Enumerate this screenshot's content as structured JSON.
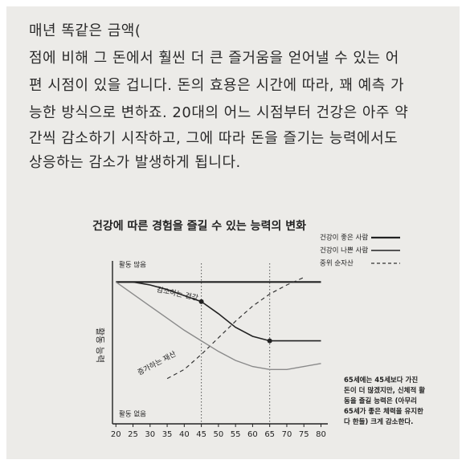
{
  "text_lines": [
    "매년 똑같은 금액(",
    "점에 비해 그 돈에서 훨씬 더 큰 즐거움을 얻어낼 수 있는 어",
    "편 시점이 있을 겁니다. 돈의 효용은 시간에 따라, 꽤 예측 가",
    "능한 방식으로 변하죠. 20대의 어느 시점부터 건강은 아주 약",
    "간씩 감소하기 시작하고, 그에 따라 돈을 즐기는 능력에서도",
    "상응하는 감소가 발생하게 됩니다."
  ],
  "chart_data": {
    "type": "line",
    "title": "건강에 따른 경험을 즐길 수 있는 능력의 변화",
    "y_label": "활동 능력",
    "x": [
      20,
      25,
      30,
      35,
      40,
      45,
      50,
      55,
      60,
      65,
      70,
      75,
      80
    ],
    "xlim": [
      19,
      82
    ],
    "xticks": [
      20,
      25,
      30,
      35,
      40,
      45,
      50,
      55,
      60,
      65,
      70,
      75,
      80
    ],
    "ylim": [
      0,
      100
    ],
    "yticks": [
      {
        "value": 100,
        "label": "활동 많음"
      },
      {
        "value": 0,
        "label": "활동 없음"
      }
    ],
    "reference_lines_x": [
      45,
      65
    ],
    "series": [
      {
        "name": "건강이 좋은 사람",
        "color": "#222222",
        "width": 2.2,
        "dash": false,
        "values": [
          94,
          94,
          94,
          94,
          94,
          94,
          94,
          94,
          94,
          94,
          94,
          94,
          94
        ]
      },
      {
        "name": "건강이 나쁜 사람",
        "color": "#222222",
        "width": 1.6,
        "dash": false,
        "marker_indices": [
          5,
          9
        ],
        "values": [
          94,
          94,
          92,
          89,
          85,
          81,
          73,
          64,
          58,
          55,
          55,
          55,
          55
        ]
      },
      {
        "name": "중위 순자산",
        "color": "#333333",
        "width": 1.2,
        "dash": true,
        "values": [
          null,
          null,
          null,
          30,
          36,
          46,
          57,
          68,
          78,
          86,
          92,
          97,
          null
        ]
      },
      {
        "color": "#8a8a8a",
        "width": 1.4,
        "dash": false,
        "values": [
          94,
          86,
          78,
          70,
          62,
          55,
          48,
          42,
          38,
          36,
          36,
          38,
          40
        ]
      }
    ],
    "annotations": [
      {
        "text": "감소하는 건강",
        "x": 38,
        "y": 86
      },
      {
        "text": "증가하는 재산",
        "x": 32,
        "y": 40
      }
    ],
    "note": "65세에는 45세보다 가진 돈이 더 많겠지만, 신체적 활동을 즐길 능력은 (아무리 65세가 좋은 체력을 유지한다 한들) 크게 감소한다."
  }
}
